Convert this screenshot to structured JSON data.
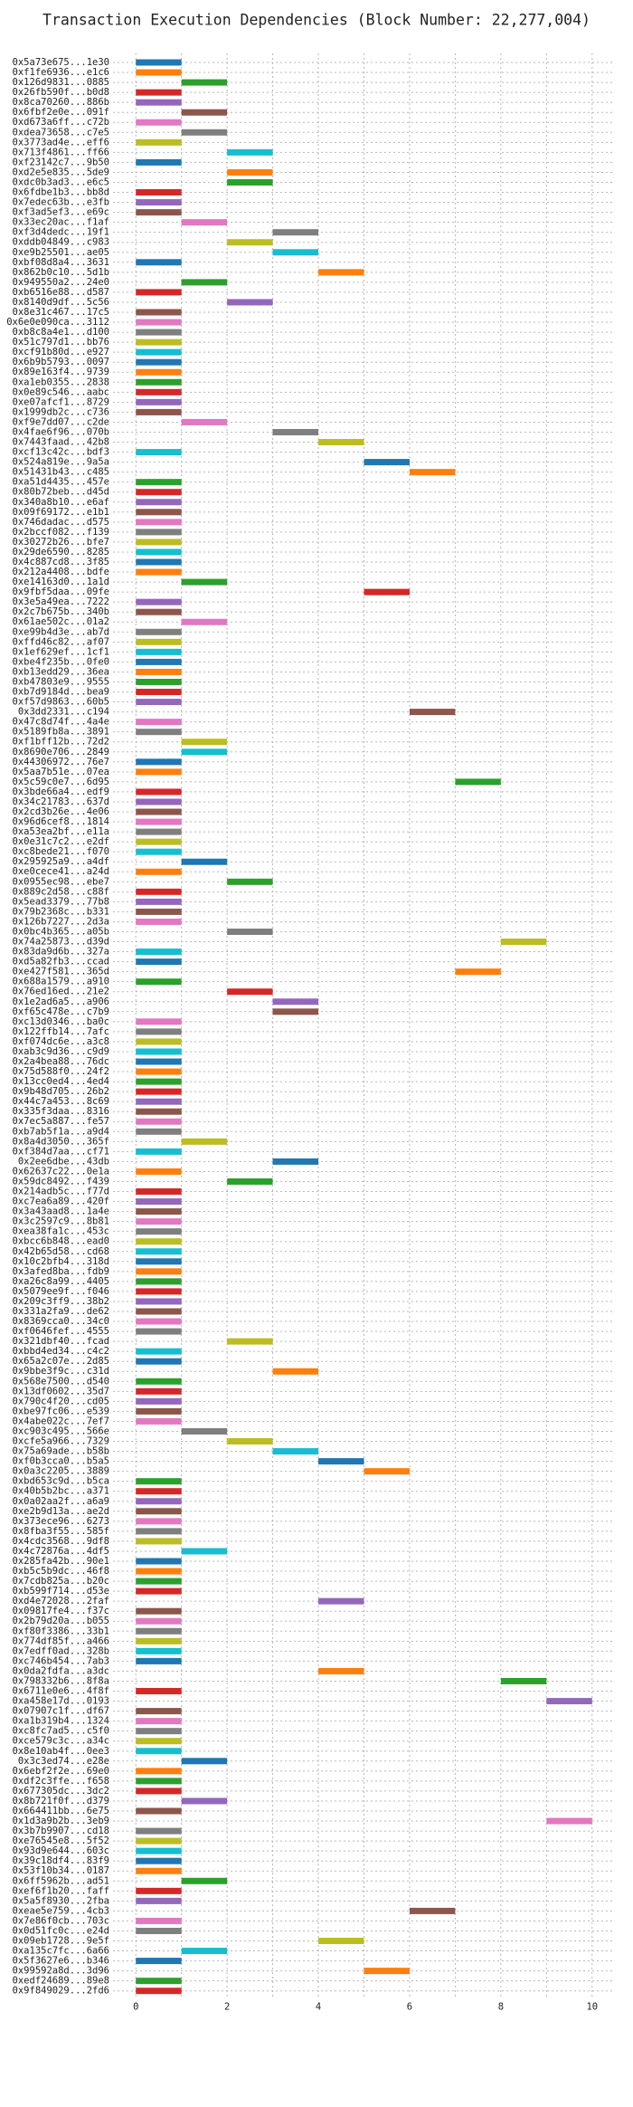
{
  "chart_data": {
    "type": "gantt",
    "title": "Transaction Execution Dependencies (Block Number: 22,277,004)",
    "categories": [
      "0x5a73e675...1e30",
      "0xf1fe6936...e1c6",
      "0x126d9831...0885",
      "0x26fb590f...b0d8",
      "0x8ca70260...886b",
      "0x6fbf2e0e...091f",
      "0xd673a6ff...c72b",
      "0xdea73658...c7e5",
      "0x3773ad4e...eff6",
      "0x713f4861...ff66",
      "0xf23142c7...9b50",
      "0xd2e5e835...5de9",
      "0xdc0b3ad3...e6c5",
      "0x6fdbe1b3...bb8d",
      "0x7edec63b...e3fb",
      "0xf3ad5ef3...e69c",
      "0x33ec20ac...f1af",
      "0xf3d4dedc...19f1",
      "0xddb04849...c983",
      "0xe9b25501...ae05",
      "0xbf08d8a4...3631",
      "0x862b0c10...5d1b",
      "0x949550a2...24e0",
      "0xb6516e88...d587",
      "0x8140d9df...5c56",
      "0x8e31c467...17c5",
      "0x6e0e090ca...3112",
      "0xb8c8a4e1...d100",
      "0x51c797d1...bb76",
      "0xcf91b80d...e927",
      "0x6b9b5793...0097",
      "0x89e163f4...9739",
      "0xa1eb0355...2838",
      "0x0e89c546...aabc",
      "0xe07afcf1...8729",
      "0x1999db2c...c736",
      "0xf9e7dd07...c2de",
      "0x4fae6f96...070b",
      "0x7443faad...42b8",
      "0xcf13c42c...bdf3",
      "0x524a819e...9a5a",
      "0x51431b43...c485",
      "0xa51d4435...457e",
      "0x80b72beb...d45d",
      "0x340a8b10...e6af",
      "0x09f69172...e1b1",
      "0x746dadac...d575",
      "0x2bccf082...f139",
      "0x30272b26...bfe7",
      "0x29de6590...8285",
      "0x4c887cd8...3f85",
      "0x212a4408...bdfe",
      "0xe14163d0...1a1d",
      "0x9fbf5daa...09fe",
      "0x3e5a49ea...7222",
      "0x2c7b675b...340b",
      "0x61ae502c...01a2",
      "0xe99b4d3e...ab7d",
      "0xffd46c82...af07",
      "0x1ef629ef...1cf1",
      "0xbe4f235b...0fe0",
      "0xb13edd29...36ea",
      "0xb47803e9...9555",
      "0xb7d9184d...bea9",
      "0xf57d9863...60b5",
      "0x3dd2331...c194",
      "0x47c8d74f...4a4e",
      "0x5189fb8a...3891",
      "0xf1bff12b...72d2",
      "0x8690e706...2849",
      "0x44306972...76e7",
      "0x5aa7b51e...07ea",
      "0x5c59c0e7...6d95",
      "0x3bde66a4...edf9",
      "0x34c21783...637d",
      "0x2cd3b26e...4e06",
      "0x96d6cef8...1814",
      "0xa53ea2bf...e11a",
      "0x0e31c7c2...e2df",
      "0xc8bede21...f070",
      "0x295925a9...a4df",
      "0xe0cece41...a24d",
      "0x0955ec98...ebe7",
      "0x889c2d58...c88f",
      "0x5ead3379...77b8",
      "0x79b2368c...b331",
      "0x126b7227...2d3a",
      "0x0bc4b365...a05b",
      "0x74a25873...d39d",
      "0x83da9d6b...327a",
      "0xd5a82fb3...ccad",
      "0xe427f581...365d",
      "0x688a1579...a910",
      "0x76ed16ed...21e2",
      "0x1e2ad6a5...a906",
      "0xf65c478e...c7b9",
      "0xc13d0346...ba0c",
      "0x122ffb14...7afc",
      "0xf074dc6e...a3c8",
      "0xab3c9d36...c9d9",
      "0x2a4bea88...76dc",
      "0x75d588f0...24f2",
      "0x13cc0ed4...4ed4",
      "0x9b48d705...26b2",
      "0x44c7a453...8c69",
      "0x335f3daa...8316",
      "0x7ec5a887...fe57",
      "0xb7ab5f1a...a9d4",
      "0x8a4d3050...365f",
      "0xf384d7aa...cf71",
      "0x2ee6dbe...43db",
      "0x62637c22...0e1a",
      "0x59dc8492...f439",
      "0x214adb5c...f77d",
      "0xc7ea6a89...420f",
      "0x3a43aad8...1a4e",
      "0x3c2597c9...8b81",
      "0xea38fa1c...453c",
      "0xbcc6b848...ead0",
      "0x42b65d58...cd68",
      "0x10c2bfb4...318d",
      "0x3afed8ba...fdb9",
      "0xa26c8a99...4405",
      "0x5079ee9f...f046",
      "0x209c3ff9...38b2",
      "0x331a2fa9...de62",
      "0x8369cca0...34c0",
      "0xf0646fef...4555",
      "0x321dbf40...fcad",
      "0xbbd4ed34...c4c2",
      "0x65a2c07e...2d85",
      "0x9bbe3f9c...c31d",
      "0x568e7500...d540",
      "0x13df0602...35d7",
      "0x790c4f20...cd05",
      "0xbe97fc06...e539",
      "0x4abe022c...7ef7",
      "0xc903c495...566e",
      "0xcfe5a966...7329",
      "0x75a69ade...b58b",
      "0xf0b3cca0...b5a5",
      "0x0a3c2205...3889",
      "0xbd653c9d...b5ca",
      "0x40b5b2bc...a371",
      "0x0a02aa2f...a6a9",
      "0xe2b9d13a...ae2d",
      "0x373ece96...6273",
      "0x8fba3f55...585f",
      "0x4cdc3568...9df8",
      "0x4c72876a...4df5",
      "0x285fa42b...90e1",
      "0xb5c5b9dc...46f8",
      "0x7cdb825a...b20c",
      "0xb599f714...d53e",
      "0xd4e72028...2faf",
      "0x09817fe4...f37c",
      "0x2b79d20a...b055",
      "0xf80f3386...33b1",
      "0x774df85f...a466",
      "0x7edff0ad...328b",
      "0xc746b454...7ab3",
      "0x0da2fdfa...a3dc",
      "0x798332b6...8f8a",
      "0x6711e0e6...4f8f",
      "0xa458e17d...0193",
      "0x07907c1f...df67",
      "0xa1b319b4...1324",
      "0xc8fc7ad5...c5f0",
      "0xce579c3c...a34c",
      "0x8e10ab4f...0ee3",
      "0x3c3ed74...e28e",
      "0x6ebf2f2e...69e0",
      "0xdf2c3ffe...f658",
      "0x677305dc...3dc2",
      "0x8b721f0f...d379",
      "0x664411bb...6e75",
      "0x1d3a9b2b...3eb9",
      "0x3b7b9907...cd18",
      "0xe76545e8...5f52",
      "0x93d9e644...603c",
      "0x39c18df4...83f9",
      "0x53f10b34...0187",
      "0x6ff5962b...ad51",
      "0xef6f1b20...faff",
      "0x5a5f8930...2fba",
      "0xeae5e759...4cb3",
      "0x7e86f0cb...703c",
      "0x0d51fc0c...e24d",
      "0x09eb1728...9e5f",
      "0xa135c7fc...6a66",
      "0x5f3627e6...b346",
      "0x99592a8d...3d96",
      "0xedf24689...89e8",
      "0x9f849029...2fd6"
    ],
    "start": [
      0,
      0,
      1,
      0,
      0,
      1,
      0,
      1,
      0,
      2,
      0,
      2,
      2,
      0,
      0,
      0,
      1,
      3,
      2,
      3,
      0,
      4,
      1,
      0,
      2,
      0,
      0,
      0,
      0,
      0,
      0,
      0,
      0,
      0,
      0,
      0,
      1,
      3,
      4,
      0,
      5,
      6,
      0,
      0,
      0,
      0,
      0,
      0,
      0,
      0,
      0,
      0,
      1,
      5,
      0,
      0,
      1,
      0,
      0,
      0,
      0,
      0,
      0,
      0,
      0,
      6,
      0,
      0,
      1,
      1,
      0,
      0,
      7,
      0,
      0,
      0,
      0,
      0,
      0,
      0,
      1,
      0,
      2,
      0,
      0,
      0,
      0,
      2,
      8,
      0,
      0,
      7,
      0,
      2,
      3,
      3,
      0,
      0,
      0,
      0,
      0,
      0,
      0,
      0,
      0,
      0,
      0,
      0,
      1,
      0,
      3,
      0,
      2,
      0,
      0,
      0,
      0,
      0,
      0,
      0,
      0,
      0,
      0,
      0,
      0,
      0,
      0,
      0,
      2,
      0,
      0,
      3,
      0,
      0,
      0,
      0,
      0,
      1,
      2,
      3,
      4,
      5,
      0,
      0,
      0,
      0,
      0,
      0,
      0,
      1,
      0,
      0,
      0,
      0,
      4,
      0,
      0,
      0,
      0,
      0,
      0,
      4,
      8,
      0,
      9,
      0,
      0,
      0,
      0,
      0,
      1,
      0,
      0,
      0,
      1,
      0,
      9,
      0,
      0,
      0,
      0,
      0,
      1,
      0,
      0,
      6,
      0,
      0,
      4,
      1,
      0,
      5,
      0,
      0
    ],
    "end": [
      1,
      1,
      2,
      1,
      1,
      2,
      1,
      2,
      1,
      3,
      1,
      3,
      3,
      1,
      1,
      1,
      2,
      4,
      3,
      4,
      1,
      5,
      2,
      1,
      3,
      1,
      1,
      1,
      1,
      1,
      1,
      1,
      1,
      1,
      1,
      1,
      2,
      4,
      5,
      1,
      6,
      7,
      1,
      1,
      1,
      1,
      1,
      1,
      1,
      1,
      1,
      1,
      2,
      6,
      1,
      1,
      2,
      1,
      1,
      1,
      1,
      1,
      1,
      1,
      1,
      7,
      1,
      1,
      2,
      2,
      1,
      1,
      8,
      1,
      1,
      1,
      1,
      1,
      1,
      1,
      2,
      1,
      3,
      1,
      1,
      1,
      1,
      3,
      9,
      1,
      1,
      8,
      1,
      3,
      4,
      4,
      1,
      1,
      1,
      1,
      1,
      1,
      1,
      1,
      1,
      1,
      1,
      1,
      2,
      1,
      4,
      1,
      3,
      1,
      1,
      1,
      1,
      1,
      1,
      1,
      1,
      1,
      1,
      1,
      1,
      1,
      1,
      1,
      3,
      1,
      1,
      4,
      1,
      1,
      1,
      1,
      1,
      2,
      3,
      4,
      5,
      6,
      1,
      1,
      1,
      1,
      1,
      1,
      1,
      2,
      1,
      1,
      1,
      1,
      5,
      1,
      1,
      1,
      1,
      1,
      1,
      5,
      9,
      1,
      10,
      1,
      1,
      1,
      1,
      1,
      2,
      1,
      1,
      1,
      2,
      1,
      10,
      1,
      1,
      1,
      1,
      1,
      2,
      1,
      1,
      7,
      1,
      1,
      5,
      2,
      1,
      6,
      1,
      1
    ],
    "palette": [
      "#1f77b4",
      "#ff7f0e",
      "#2ca02c",
      "#d62728",
      "#9467bd",
      "#8c564b",
      "#e377c2",
      "#7f7f7f",
      "#bcbd22",
      "#17becf"
    ],
    "xlim": [
      -0.5,
      10.5
    ],
    "xticks": [
      0,
      2,
      4,
      6,
      8,
      10
    ],
    "x_minor_ticks": [
      1,
      3,
      5,
      7,
      9
    ],
    "grid": true
  }
}
